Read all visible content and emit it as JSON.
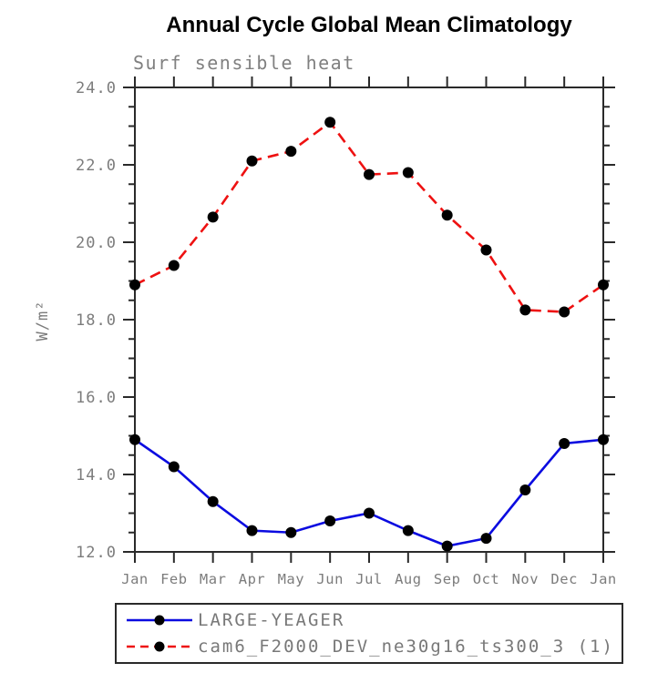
{
  "page": {
    "background": "#ffffff"
  },
  "chart_data": {
    "type": "line",
    "title": "Annual Cycle Global Mean Climatology",
    "subtitle": "Surf sensible heat",
    "ylabel": "W/m²",
    "xlabel": "",
    "ylim": [
      12.0,
      24.0
    ],
    "ytick_interval": 2.0,
    "ytick_minor_interval": 0.5,
    "ytick_labels": [
      "12.0",
      "14.0",
      "16.0",
      "18.0",
      "20.0",
      "22.0",
      "24.0"
    ],
    "categories": [
      "Jan",
      "Feb",
      "Mar",
      "Apr",
      "May",
      "Jun",
      "Jul",
      "Aug",
      "Sep",
      "Oct",
      "Nov",
      "Dec",
      "Jan"
    ],
    "grid": false,
    "legend_position": "bottom",
    "text_color": "#7c7c7c",
    "axis_color": "#2a2a2a",
    "marker_color": "#000000",
    "series": [
      {
        "name": "LARGE-YEAGER",
        "color": "#0b0be0",
        "line_style": "solid",
        "marker": "filled-circle",
        "values": [
          14.9,
          14.2,
          13.3,
          12.55,
          12.5,
          12.8,
          13.0,
          12.55,
          12.15,
          12.35,
          13.6,
          14.8,
          14.9
        ]
      },
      {
        "name": "cam6_F2000_DEV_ne30g16_ts300_3 (1)",
        "color": "#ee1111",
        "line_style": "dashed",
        "marker": "filled-circle",
        "values": [
          18.9,
          19.4,
          20.65,
          22.1,
          22.35,
          23.1,
          21.75,
          21.8,
          20.7,
          19.8,
          18.25,
          18.2,
          18.9
        ]
      }
    ]
  }
}
